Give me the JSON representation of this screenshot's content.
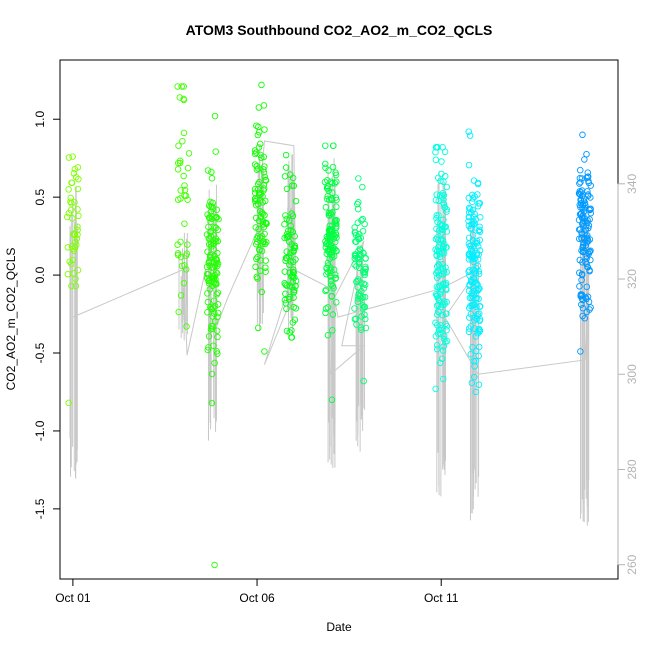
{
  "chart_data": {
    "type": "scatter",
    "title": "ATOM3 Southbound CO2_AO2_m_CO2_QCLS",
    "xlabel": "Date",
    "ylabel": "CO2_AO2_m_CO2_QCLS",
    "x_ticks": [
      {
        "day": 1,
        "label": "Oct 01"
      },
      {
        "day": 6,
        "label": "Oct 06"
      },
      {
        "day": 11,
        "label": "Oct 11"
      }
    ],
    "xlim_days": [
      0.65,
      15.8
    ],
    "y_ticks": [
      "-1.5",
      "-1.0",
      "-0.5",
      "0.0",
      "0.5",
      "1.0"
    ],
    "ylim": [
      -1.95,
      1.38
    ],
    "y2_ticks": [
      "260",
      "280",
      "300",
      "320",
      "340"
    ],
    "y2lim": [
      257,
      366
    ],
    "grid": false,
    "legend": "none",
    "colors": {
      "background_line": "#c8c8c8",
      "right_axis": "#b3b3b3",
      "point_scale": [
        "#7fff00",
        "#00ff00",
        "#00ffff",
        "#0099ff"
      ]
    },
    "flights": [
      {
        "day": 1.0,
        "y_center": 0.3,
        "y_sd": 0.25,
        "y_min": -0.82,
        "y_max": 0.76,
        "n": 45,
        "color": "#7fff00",
        "co2_low": 276,
        "co2_high": 341
      },
      {
        "day": 4.0,
        "y_center": 0.55,
        "y_sd": 0.35,
        "y_min": -0.33,
        "y_max": 1.21,
        "n": 40,
        "color": "#44ff00",
        "co2_low": 306,
        "co2_high": 330
      },
      {
        "day": 4.8,
        "y_center": 0.05,
        "y_sd": 0.3,
        "y_min": -1.86,
        "y_max": 1.02,
        "n": 120,
        "color": "#22ff00",
        "co2_low": 283,
        "co2_high": 340
      },
      {
        "day": 6.1,
        "y_center": 0.45,
        "y_sd": 0.3,
        "y_min": -0.49,
        "y_max": 1.22,
        "n": 90,
        "color": "#10ff00",
        "co2_low": 309,
        "co2_high": 350
      },
      {
        "day": 6.9,
        "y_center": 0.1,
        "y_sd": 0.25,
        "y_min": -0.4,
        "y_max": 0.77,
        "n": 80,
        "color": "#00ff10",
        "co2_low": 308,
        "co2_high": 348
      },
      {
        "day": 8.0,
        "y_center": 0.2,
        "y_sd": 0.28,
        "y_min": -0.8,
        "y_max": 0.83,
        "n": 130,
        "color": "#00ff40",
        "co2_low": 280,
        "co2_high": 346
      },
      {
        "day": 8.8,
        "y_center": 0.05,
        "y_sd": 0.22,
        "y_min": -0.68,
        "y_max": 0.62,
        "n": 80,
        "color": "#00ff70",
        "co2_low": 283,
        "co2_high": 328
      },
      {
        "day": 11.0,
        "y_center": 0.1,
        "y_sd": 0.32,
        "y_min": -0.73,
        "y_max": 0.82,
        "n": 140,
        "color": "#00ffe0",
        "co2_low": 274,
        "co2_high": 345
      },
      {
        "day": 11.9,
        "y_center": 0.05,
        "y_sd": 0.3,
        "y_min": -0.75,
        "y_max": 0.92,
        "n": 150,
        "color": "#00f0ff",
        "co2_low": 269,
        "co2_high": 334
      },
      {
        "day": 14.9,
        "y_center": 0.25,
        "y_sd": 0.28,
        "y_min": -0.49,
        "y_max": 0.9,
        "n": 130,
        "color": "#0099ff",
        "co2_low": 268,
        "co2_high": 336
      }
    ],
    "gray_path": [
      [
        1.0,
        312
      ],
      [
        4.0,
        322
      ],
      [
        4.1,
        304
      ],
      [
        4.6,
        322
      ],
      [
        4.9,
        310
      ],
      [
        5.2,
        316
      ],
      [
        6.0,
        330
      ],
      [
        6.2,
        349
      ],
      [
        7.0,
        348
      ],
      [
        7.05,
        318
      ],
      [
        6.2,
        302
      ],
      [
        7.0,
        322
      ],
      [
        8.0,
        318
      ],
      [
        8.1,
        310
      ],
      [
        8.0,
        300
      ],
      [
        8.9,
        306
      ],
      [
        8.3,
        306
      ],
      [
        8.9,
        328
      ],
      [
        8.1,
        316
      ],
      [
        8.2,
        312
      ],
      [
        11.0,
        318
      ],
      [
        12.0,
        322
      ],
      [
        11.1,
        312
      ],
      [
        12.0,
        300
      ],
      [
        14.9,
        303
      ],
      [
        14.95,
        310
      ]
    ]
  }
}
